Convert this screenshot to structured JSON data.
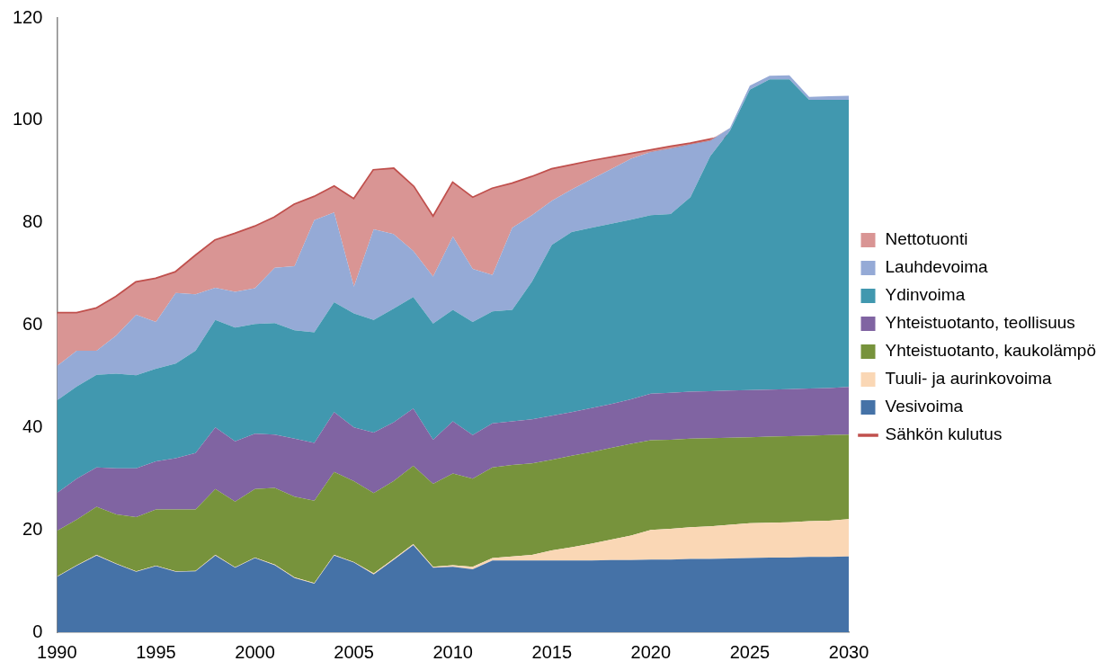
{
  "chart_data": {
    "type": "area",
    "stacked": true,
    "grid": false,
    "legend": "right",
    "x": [
      1990,
      1991,
      1992,
      1993,
      1994,
      1995,
      1996,
      1997,
      1998,
      1999,
      2000,
      2001,
      2002,
      2003,
      2004,
      2005,
      2006,
      2007,
      2008,
      2009,
      2010,
      2011,
      2012,
      2013,
      2014,
      2015,
      2016,
      2017,
      2018,
      2019,
      2020,
      2021,
      2022,
      2023,
      2024,
      2025,
      2026,
      2027,
      2028,
      2029,
      2030
    ],
    "xlim": [
      1990,
      2030
    ],
    "xticks": [
      1990,
      1995,
      2000,
      2005,
      2010,
      2015,
      2020,
      2025,
      2030
    ],
    "ylim": [
      0,
      120
    ],
    "yticks": [
      0,
      20,
      40,
      60,
      80,
      100,
      120
    ],
    "series": [
      {
        "name": "Vesivoima",
        "type": "area",
        "color": "#4572a7",
        "values": [
          10.8,
          13.0,
          15.0,
          13.3,
          11.8,
          12.9,
          11.8,
          11.9,
          15.0,
          12.6,
          14.5,
          13.1,
          10.6,
          9.5,
          15.0,
          13.6,
          11.3,
          14.1,
          17.0,
          12.6,
          12.8,
          12.3,
          14.0,
          14.0,
          14.0,
          14.0,
          14.0,
          14.0,
          14.1,
          14.1,
          14.2,
          14.2,
          14.3,
          14.3,
          14.4,
          14.5,
          14.6,
          14.6,
          14.7,
          14.7,
          14.8
        ]
      },
      {
        "name": "Tuuli- ja aurinkovoima",
        "type": "area",
        "color": "#fad7b5",
        "values": [
          0.1,
          0.1,
          0.1,
          0.1,
          0.1,
          0.1,
          0.1,
          0.1,
          0.1,
          0.1,
          0.1,
          0.1,
          0.1,
          0.1,
          0.1,
          0.1,
          0.2,
          0.2,
          0.2,
          0.2,
          0.3,
          0.5,
          0.5,
          0.8,
          1.1,
          2.0,
          2.6,
          3.3,
          4.0,
          4.8,
          5.8,
          6.0,
          6.2,
          6.4,
          6.6,
          6.8,
          6.8,
          6.9,
          7.0,
          7.1,
          7.3
        ]
      },
      {
        "name": "Yhteistuotanto, kaukolämpö",
        "type": "area",
        "color": "#77933c",
        "values": [
          8.9,
          8.9,
          9.4,
          9.6,
          10.6,
          11.0,
          12.1,
          12.0,
          12.9,
          12.8,
          13.4,
          15.0,
          15.8,
          16.1,
          16.2,
          15.8,
          15.7,
          15.2,
          15.3,
          16.2,
          17.9,
          17.2,
          17.7,
          17.9,
          17.9,
          17.7,
          17.9,
          17.9,
          17.9,
          17.9,
          17.5,
          17.4,
          17.3,
          17.2,
          17.0,
          16.8,
          16.8,
          16.8,
          16.7,
          16.7,
          16.5
        ]
      },
      {
        "name": "Yhteistuotanto, teollisuus",
        "type": "area",
        "color": "#8064a2",
        "values": [
          7.4,
          8.0,
          7.7,
          9.0,
          9.5,
          9.4,
          10.0,
          11.0,
          12.0,
          11.8,
          10.8,
          10.4,
          11.3,
          11.3,
          11.7,
          10.5,
          11.8,
          11.5,
          11.2,
          8.6,
          10.2,
          8.5,
          8.6,
          8.5,
          8.6,
          8.6,
          8.5,
          8.6,
          8.6,
          8.7,
          9.1,
          9.2,
          9.2,
          9.2,
          9.2,
          9.2,
          9.2,
          9.2,
          9.2,
          9.2,
          9.3
        ]
      },
      {
        "name": "Ydinvoima",
        "type": "area",
        "color": "#4198af",
        "values": [
          18.1,
          18.0,
          18.1,
          18.5,
          18.2,
          18.1,
          18.5,
          20.0,
          21.0,
          22.2,
          21.4,
          21.8,
          21.2,
          21.6,
          21.5,
          22.3,
          22.0,
          22.2,
          21.8,
          22.7,
          21.8,
          22.1,
          21.9,
          21.8,
          26.9,
          33.4,
          35.2,
          35.2,
          35.2,
          35.1,
          34.9,
          34.9,
          38.0,
          45.9,
          50.8,
          58.7,
          60.6,
          60.5,
          56.4,
          56.3,
          56.1
        ]
      },
      {
        "name": "Lauhdevoima",
        "type": "area",
        "color": "#95aad6",
        "values": [
          6.7,
          7.0,
          4.7,
          7.5,
          11.8,
          9.1,
          13.8,
          11.0,
          6.3,
          7.0,
          7.0,
          10.8,
          12.5,
          21.9,
          17.5,
          5.2,
          17.7,
          14.6,
          9.0,
          9.2,
          14.3,
          10.4,
          7.1,
          16.0,
          13.0,
          8.6,
          8.3,
          9.5,
          10.7,
          11.9,
          12.3,
          12.8,
          10.3,
          3.0,
          0.5,
          0.8,
          0.7,
          0.8,
          0.6,
          0.7,
          0.8
        ]
      },
      {
        "name": "Nettotuonti",
        "type": "area",
        "color": "#d99594",
        "values": [
          10.3,
          7.3,
          8.2,
          7.5,
          6.3,
          8.4,
          4.0,
          7.5,
          9.2,
          11.3,
          12.0,
          9.8,
          12.0,
          4.5,
          5.0,
          17.0,
          11.5,
          12.7,
          12.5,
          11.5,
          10.4,
          13.8,
          16.8,
          8.6,
          7.4,
          6.1,
          4.7,
          3.5,
          2.2,
          0.9,
          0.3,
          0.3,
          0.1,
          0.2,
          0,
          0,
          0,
          0,
          0,
          0,
          0
        ]
      },
      {
        "name": "Sähkön kulutus",
        "type": "line",
        "color": "#c0504d",
        "values": [
          62.3,
          62.3,
          63.2,
          65.5,
          68.3,
          69.0,
          70.3,
          73.5,
          76.5,
          77.8,
          79.2,
          81.0,
          83.5,
          85.0,
          87.0,
          84.5,
          90.2,
          90.5,
          87.0,
          81.0,
          87.7,
          84.8,
          86.6,
          87.6,
          88.9,
          90.4,
          91.2,
          92.0,
          92.7,
          93.4,
          94.1,
          94.8,
          95.4,
          96.2,
          97.0,
          97.7,
          98.5,
          99.3,
          100.2,
          101.0,
          101.8
        ]
      }
    ]
  }
}
